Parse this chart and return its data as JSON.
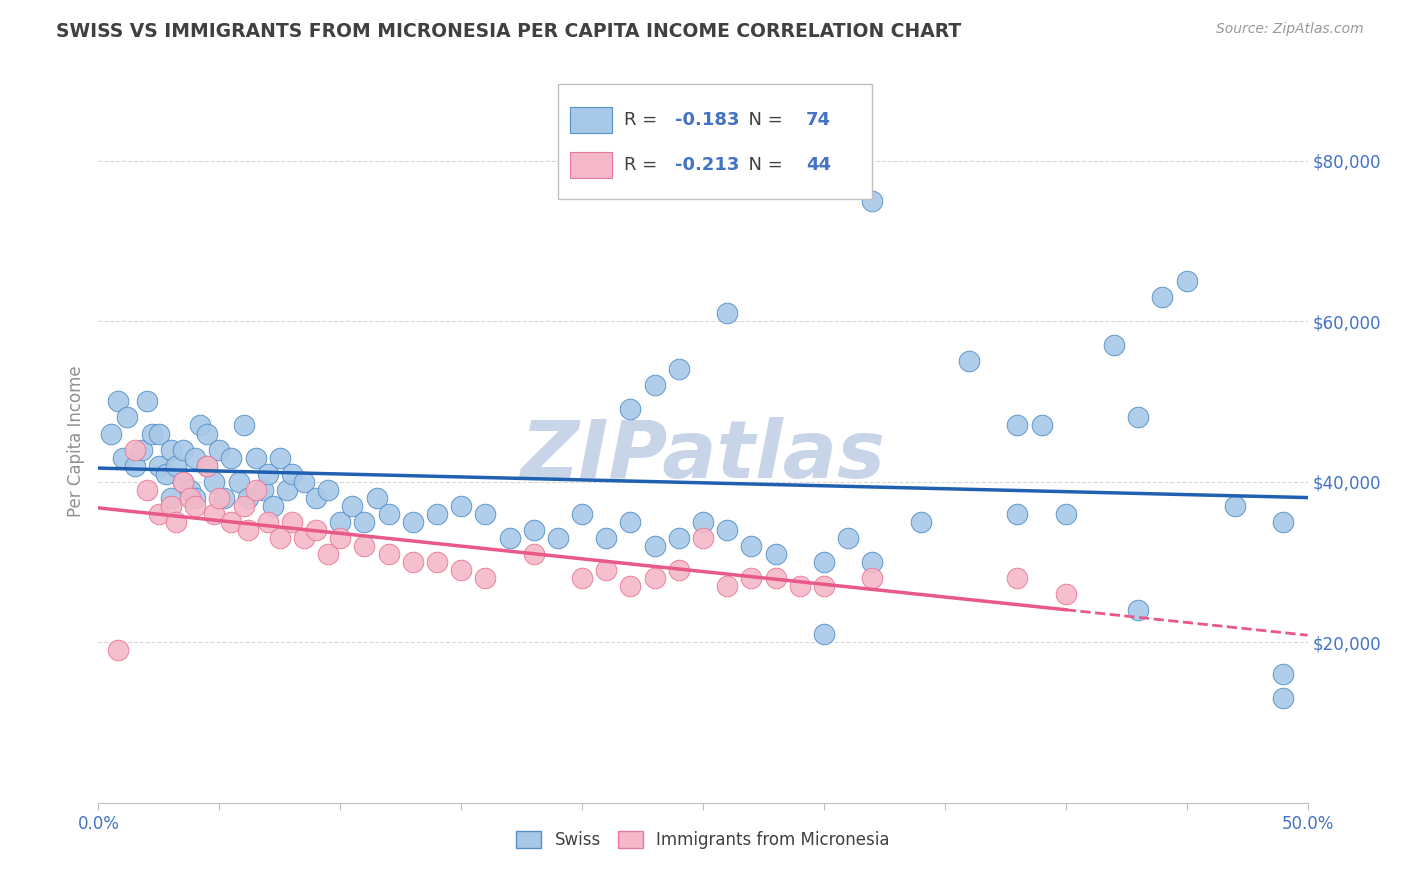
{
  "title": "SWISS VS IMMIGRANTS FROM MICRONESIA PER CAPITA INCOME CORRELATION CHART",
  "source": "Source: ZipAtlas.com",
  "ylabel": "Per Capita Income",
  "xlim": [
    0.0,
    0.5
  ],
  "ylim": [
    0,
    90000
  ],
  "yticks": [
    0,
    20000,
    40000,
    60000,
    80000
  ],
  "ytick_labels": [
    "",
    "$20,000",
    "$40,000",
    "$60,000",
    "$80,000"
  ],
  "xticks": [
    0.0,
    0.05,
    0.1,
    0.15,
    0.2,
    0.25,
    0.3,
    0.35,
    0.4,
    0.45,
    0.5
  ],
  "xtick_labels": [
    "0.0%",
    "",
    "",
    "",
    "",
    "",
    "",
    "",
    "",
    "",
    "50.0%"
  ],
  "blue_R": -0.183,
  "blue_N": 74,
  "pink_R": -0.213,
  "pink_N": 44,
  "blue_color": "#a8c8e8",
  "pink_color": "#f4b8c8",
  "blue_edge_color": "#5590c8",
  "pink_edge_color": "#e87898",
  "blue_line_color": "#2060b0",
  "pink_line_color": "#e85888",
  "watermark": "ZIPatlas",
  "watermark_color": "#c8d4e8",
  "background_color": "#ffffff",
  "grid_color": "#d8d8d8",
  "title_color": "#404040",
  "axis_label_color": "#909090",
  "tick_label_color": "#4472c4",
  "swiss_x": [
    0.005,
    0.008,
    0.01,
    0.012,
    0.015,
    0.018,
    0.02,
    0.022,
    0.025,
    0.025,
    0.028,
    0.03,
    0.03,
    0.032,
    0.035,
    0.035,
    0.038,
    0.04,
    0.04,
    0.042,
    0.045,
    0.045,
    0.048,
    0.05,
    0.052,
    0.055,
    0.058,
    0.06,
    0.062,
    0.065,
    0.068,
    0.07,
    0.072,
    0.075,
    0.078,
    0.08,
    0.085,
    0.09,
    0.095,
    0.1,
    0.105,
    0.11,
    0.115,
    0.12,
    0.13,
    0.14,
    0.15,
    0.16,
    0.17,
    0.18,
    0.19,
    0.2,
    0.21,
    0.22,
    0.23,
    0.24,
    0.25,
    0.26,
    0.27,
    0.28,
    0.3,
    0.31,
    0.32,
    0.34,
    0.36,
    0.38,
    0.39,
    0.4,
    0.42,
    0.43,
    0.44,
    0.45,
    0.47,
    0.49
  ],
  "swiss_y": [
    46000,
    50000,
    43000,
    48000,
    42000,
    44000,
    50000,
    46000,
    42000,
    46000,
    41000,
    44000,
    38000,
    42000,
    40000,
    44000,
    39000,
    43000,
    38000,
    47000,
    42000,
    46000,
    40000,
    44000,
    38000,
    43000,
    40000,
    47000,
    38000,
    43000,
    39000,
    41000,
    37000,
    43000,
    39000,
    41000,
    40000,
    38000,
    39000,
    35000,
    37000,
    35000,
    38000,
    36000,
    35000,
    36000,
    37000,
    36000,
    33000,
    34000,
    33000,
    36000,
    33000,
    35000,
    32000,
    33000,
    35000,
    34000,
    32000,
    31000,
    30000,
    33000,
    30000,
    35000,
    55000,
    36000,
    47000,
    36000,
    57000,
    48000,
    63000,
    65000,
    37000,
    35000
  ],
  "swiss_y_outliers": [
    75000,
    61000,
    54000,
    52000,
    49000,
    47000,
    21000,
    16000,
    24000,
    13000
  ],
  "swiss_x_outliers": [
    0.32,
    0.26,
    0.24,
    0.23,
    0.22,
    0.38,
    0.3,
    0.49,
    0.43,
    0.49
  ],
  "micro_x": [
    0.008,
    0.015,
    0.02,
    0.025,
    0.03,
    0.032,
    0.035,
    0.038,
    0.04,
    0.045,
    0.048,
    0.05,
    0.055,
    0.06,
    0.062,
    0.065,
    0.07,
    0.075,
    0.08,
    0.085,
    0.09,
    0.095,
    0.1,
    0.11,
    0.12,
    0.13,
    0.14,
    0.15,
    0.16,
    0.18,
    0.2,
    0.21,
    0.22,
    0.23,
    0.24,
    0.25,
    0.26,
    0.27,
    0.28,
    0.29,
    0.3,
    0.32,
    0.38,
    0.4
  ],
  "micro_y": [
    19000,
    44000,
    39000,
    36000,
    37000,
    35000,
    40000,
    38000,
    37000,
    42000,
    36000,
    38000,
    35000,
    37000,
    34000,
    39000,
    35000,
    33000,
    35000,
    33000,
    34000,
    31000,
    33000,
    32000,
    31000,
    30000,
    30000,
    29000,
    28000,
    31000,
    28000,
    29000,
    27000,
    28000,
    29000,
    33000,
    27000,
    28000,
    28000,
    27000,
    27000,
    28000,
    28000,
    26000
  ]
}
